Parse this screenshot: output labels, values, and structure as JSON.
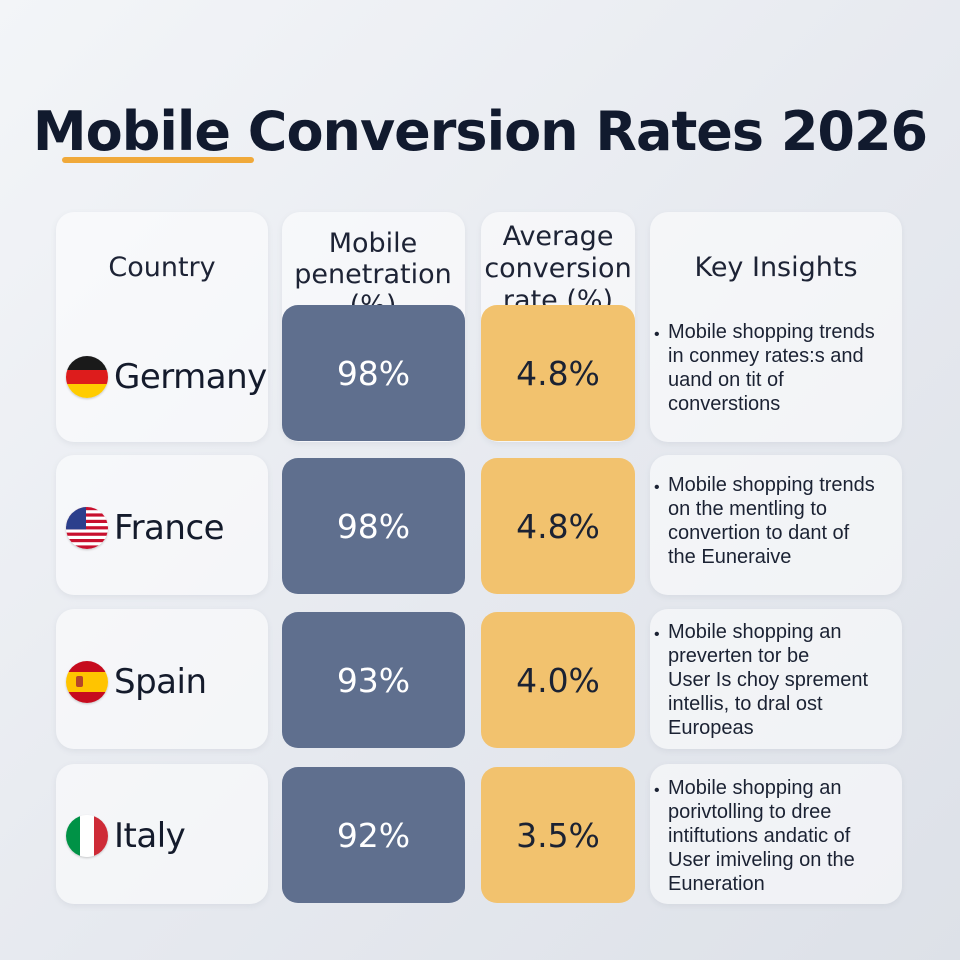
{
  "title": "Mobile Conversion Rates 2026",
  "headers": {
    "country": "Country",
    "penetration_l1": "Mobile",
    "penetration_l2": "penetration (%)",
    "conversion_l1": "Average",
    "conversion_l2": "conversion",
    "conversion_l3": "rate (%)",
    "insights": "Key Insights"
  },
  "colors": {
    "penetration_fill": "#5f6f8e",
    "conversion_fill": "#f2c26e",
    "title_accent": "#f0a93a"
  },
  "rows": [
    {
      "country": "Germany",
      "flag_icon": "germany-flag-icon",
      "penetration": "98%",
      "conversion": "4.8%",
      "insight": [
        "Mobile shopping trends",
        "in conmey rates:s and",
        "uand on tit of",
        "converstions"
      ]
    },
    {
      "country": "France",
      "flag_icon": "us-flag-icon",
      "penetration": "98%",
      "conversion": "4.8%",
      "insight": [
        "Mobile shopping trends",
        "on the mentling to",
        "convertion to dant of",
        "the Euneraive"
      ]
    },
    {
      "country": "Spain",
      "flag_icon": "spain-flag-icon",
      "penetration": "93%",
      "conversion": "4.0%",
      "insight": [
        "Mobile shopping an",
        "preverten tor be",
        "User Is choy sprement",
        "intellis, to dral ost",
        "Europeas"
      ]
    },
    {
      "country": "Italy",
      "flag_icon": "italy-flag-icon",
      "penetration": "92%",
      "conversion": "3.5%",
      "insight": [
        "Mobile shopping an",
        "porivtolling to dree",
        "intiftutions andatic of",
        "User imiveling on the",
        "Euneration"
      ]
    }
  ]
}
